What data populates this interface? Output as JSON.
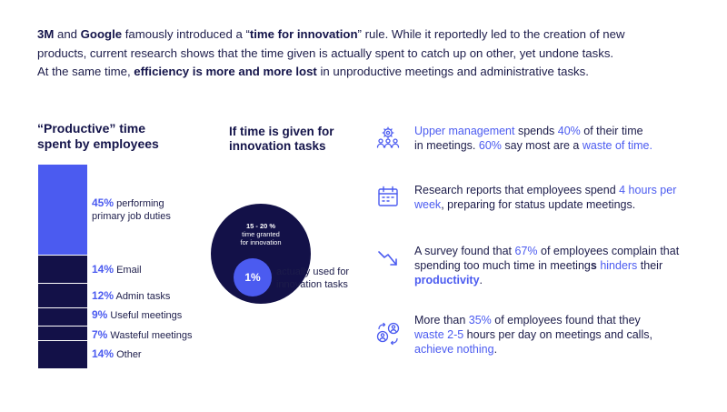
{
  "intro": {
    "line1": {
      "a": "3M",
      "b": " and ",
      "c": "Google",
      "d": " famously introduced a “",
      "e": "time for innovation",
      "f": "” rule. While it reportedly led to the creation of new"
    },
    "line2": "products, current research shows that the time given is actually spent to catch up on other, yet undone tasks.",
    "line3": {
      "a": "At the same time, ",
      "b": "efficiency is more and more lost",
      "c": " in unproductive meetings and administrative tasks."
    }
  },
  "productive": {
    "title_line1": "“Productive” time",
    "title_line2": "spent by employees",
    "items": [
      {
        "pct": "45%",
        "label": " performing",
        "label2": "primary job duties"
      },
      {
        "pct": "14%",
        "label": " Email"
      },
      {
        "pct": "12%",
        "label": " Admin tasks"
      },
      {
        "pct": "9%",
        "label": " Useful meetings"
      },
      {
        "pct": "7%",
        "label": " Wasteful meetings"
      },
      {
        "pct": "14%",
        "label": " Other"
      }
    ]
  },
  "chart_data": {
    "type": "bar",
    "categories": [
      "performing primary job duties",
      "Email",
      "Admin tasks",
      "Useful meetings",
      "Wasteful meetings",
      "Other"
    ],
    "values": [
      45,
      14,
      12,
      9,
      7,
      14
    ],
    "title": "“Productive” time spent by employees"
  },
  "innovation": {
    "title_line1": "If time is given for",
    "title_line2": "innovation tasks",
    "granted_pct": "15 - 20 %",
    "granted_line1": "time granted",
    "granted_line2": "for innovation",
    "used_pct": "1%",
    "used_line1": "actually used for",
    "used_line2": "innovation tasks"
  },
  "facts": [
    {
      "icon": "management-gear-icon",
      "a": "Upper management",
      "b": " spends ",
      "c": "40%",
      "d": " of their time",
      "e": "in meetings. ",
      "f": "60%",
      "g": "  say most are a ",
      "h": "waste of time."
    },
    {
      "icon": "calendar-icon",
      "a": "Research reports that employees spend ",
      "b": "4 hours per",
      "c": "week",
      "d": ", preparing for status update meetings."
    },
    {
      "icon": "trend-down-icon",
      "a": "A survey found that ",
      "b": "67%",
      "c": " of employees complain that",
      "d": "spending too much time in meeting",
      "e": "s",
      "f": " ",
      "g": "hinders",
      "h": " their",
      "i": "productivity",
      "j": "."
    },
    {
      "icon": "people-exchange-icon",
      "a": "More than ",
      "b": "35%",
      "c": " of employees found that they",
      "d": "waste 2-5",
      "e": " hours per day on meetings and calls,",
      "f": "achieve nothing",
      "g": "."
    }
  ],
  "colors": {
    "accent": "#4b5bf0",
    "navy": "#131148",
    "text": "#1c1c4a"
  }
}
